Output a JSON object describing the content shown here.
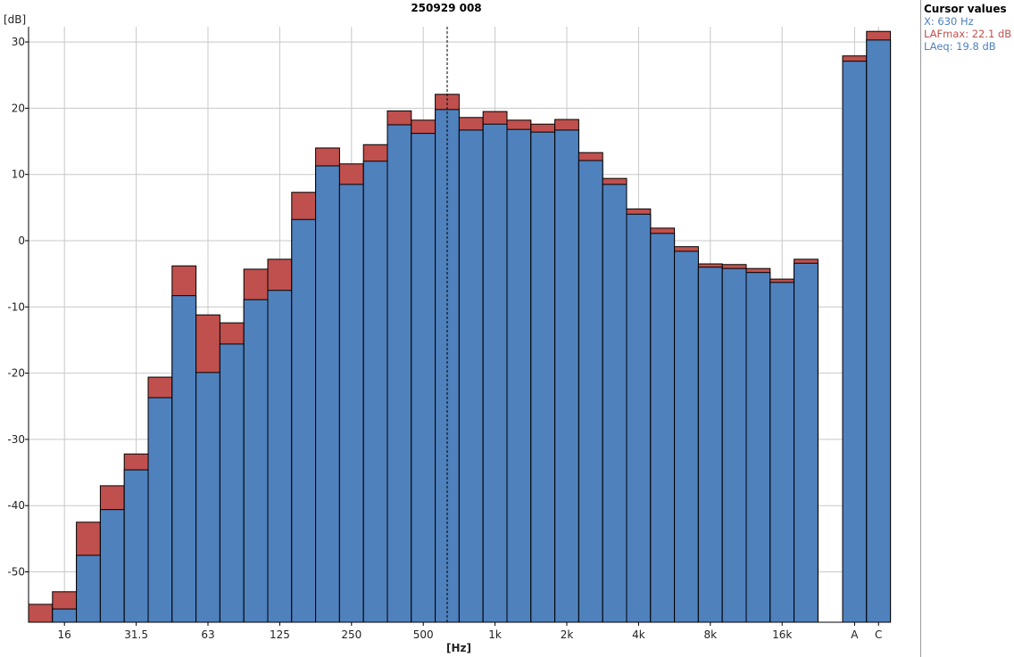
{
  "chart_data": {
    "type": "bar",
    "title": "250929 008",
    "xlabel": "[Hz]",
    "ylabel": "[dB]",
    "ylim": [
      -57.6,
      32.3
    ],
    "yticks": [
      30,
      20,
      10,
      0,
      -10,
      -20,
      -30,
      -40,
      -50
    ],
    "grid": true,
    "categories": [
      "12.5",
      "16",
      "20",
      "25",
      "31.5",
      "40",
      "50",
      "63",
      "80",
      "100",
      "125",
      "160",
      "200",
      "250",
      "315",
      "400",
      "500",
      "630",
      "800",
      "1k",
      "1.25k",
      "1.6k",
      "2k",
      "2.5k",
      "3.15k",
      "4k",
      "5k",
      "6.3k",
      "8k",
      "10k",
      "12.5k",
      "16k",
      "20k"
    ],
    "xtick_labels": {
      "16": "16",
      "31.5": "31.5",
      "63": "63",
      "125": "125",
      "250": "250",
      "500": "500",
      "1k": "1k",
      "2k": "2k",
      "4k": "4k",
      "8k": "8k",
      "16k": "16k"
    },
    "series": [
      {
        "name": "LAFmax",
        "color": "#c0504d",
        "values": [
          -54.9,
          -53.0,
          -42.5,
          -37.0,
          -32.2,
          -20.6,
          -3.8,
          -11.2,
          -12.4,
          -4.3,
          -2.8,
          7.3,
          14.0,
          11.6,
          14.5,
          19.6,
          18.2,
          22.1,
          18.6,
          19.5,
          18.2,
          17.6,
          18.3,
          13.3,
          9.4,
          4.8,
          1.9,
          -0.9,
          -3.5,
          -3.6,
          -4.2,
          -5.8,
          -2.8
        ]
      },
      {
        "name": "LAeq",
        "color": "#4f81bd",
        "values": [
          -58.5,
          -55.6,
          -47.5,
          -40.6,
          -34.6,
          -23.7,
          -8.3,
          -19.9,
          -15.6,
          -8.9,
          -7.5,
          3.2,
          11.3,
          8.5,
          12.0,
          17.5,
          16.2,
          19.8,
          16.7,
          17.6,
          16.8,
          16.4,
          16.7,
          12.1,
          8.5,
          4.0,
          1.1,
          -1.6,
          -4.0,
          -4.2,
          -4.8,
          -6.3,
          -3.4
        ]
      }
    ],
    "totals": {
      "categories": [
        "A",
        "C"
      ],
      "LAFmax": [
        27.9,
        31.6
      ],
      "LAeq": [
        27.1,
        30.3
      ]
    },
    "cursor_category": "630"
  },
  "cursor_panel": {
    "title": "Cursor values",
    "x": "X: 630 Hz",
    "lafmax": "LAFmax: 22.1 dB",
    "laeq": "LAeq: 19.8 dB"
  }
}
